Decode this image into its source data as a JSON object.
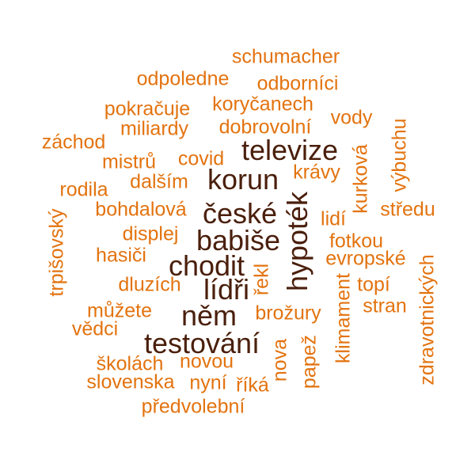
{
  "colors": {
    "dark": "#4a1f0c",
    "light": "#e3730f",
    "background": "#ffffff"
  },
  "words": [
    {
      "text": "schumacher",
      "tone": "light"
    },
    {
      "text": "odpoledne",
      "tone": "light"
    },
    {
      "text": "odborníci",
      "tone": "light"
    },
    {
      "text": "pokračuje",
      "tone": "light"
    },
    {
      "text": "koryčanech",
      "tone": "light"
    },
    {
      "text": "vody",
      "tone": "light"
    },
    {
      "text": "miliardy",
      "tone": "light"
    },
    {
      "text": "dobrovolní",
      "tone": "light"
    },
    {
      "text": "záchod",
      "tone": "light"
    },
    {
      "text": "televize",
      "tone": "dark"
    },
    {
      "text": "výbuchu",
      "tone": "light"
    },
    {
      "text": "mistrů",
      "tone": "light"
    },
    {
      "text": "covid",
      "tone": "light"
    },
    {
      "text": "kurková",
      "tone": "light"
    },
    {
      "text": "korun",
      "tone": "dark"
    },
    {
      "text": "krávy",
      "tone": "light"
    },
    {
      "text": "dalším",
      "tone": "light"
    },
    {
      "text": "rodila",
      "tone": "light"
    },
    {
      "text": "hypoték",
      "tone": "dark"
    },
    {
      "text": "české",
      "tone": "dark"
    },
    {
      "text": "bohdalová",
      "tone": "light"
    },
    {
      "text": "středu",
      "tone": "light"
    },
    {
      "text": "lidí",
      "tone": "light"
    },
    {
      "text": "trpišovský",
      "tone": "light"
    },
    {
      "text": "displej",
      "tone": "light"
    },
    {
      "text": "babiše",
      "tone": "dark"
    },
    {
      "text": "fotkou",
      "tone": "light"
    },
    {
      "text": "zdravotnických",
      "tone": "light"
    },
    {
      "text": "hasiči",
      "tone": "light"
    },
    {
      "text": "chodit",
      "tone": "dark"
    },
    {
      "text": "evropské",
      "tone": "light"
    },
    {
      "text": "řekl",
      "tone": "light"
    },
    {
      "text": "lídři",
      "tone": "dark"
    },
    {
      "text": "dluzích",
      "tone": "light"
    },
    {
      "text": "topí",
      "tone": "light"
    },
    {
      "text": "klimament",
      "tone": "light"
    },
    {
      "text": "můžete",
      "tone": "light"
    },
    {
      "text": "něm",
      "tone": "dark"
    },
    {
      "text": "stran",
      "tone": "light"
    },
    {
      "text": "brožury",
      "tone": "light"
    },
    {
      "text": "vědci",
      "tone": "light"
    },
    {
      "text": "testování",
      "tone": "dark"
    },
    {
      "text": "papež",
      "tone": "light"
    },
    {
      "text": "nova",
      "tone": "light"
    },
    {
      "text": "školách",
      "tone": "light"
    },
    {
      "text": "novou",
      "tone": "light"
    },
    {
      "text": "slovenska",
      "tone": "light"
    },
    {
      "text": "nyní",
      "tone": "light"
    },
    {
      "text": "říká",
      "tone": "light"
    },
    {
      "text": "předvolební",
      "tone": "light"
    }
  ]
}
